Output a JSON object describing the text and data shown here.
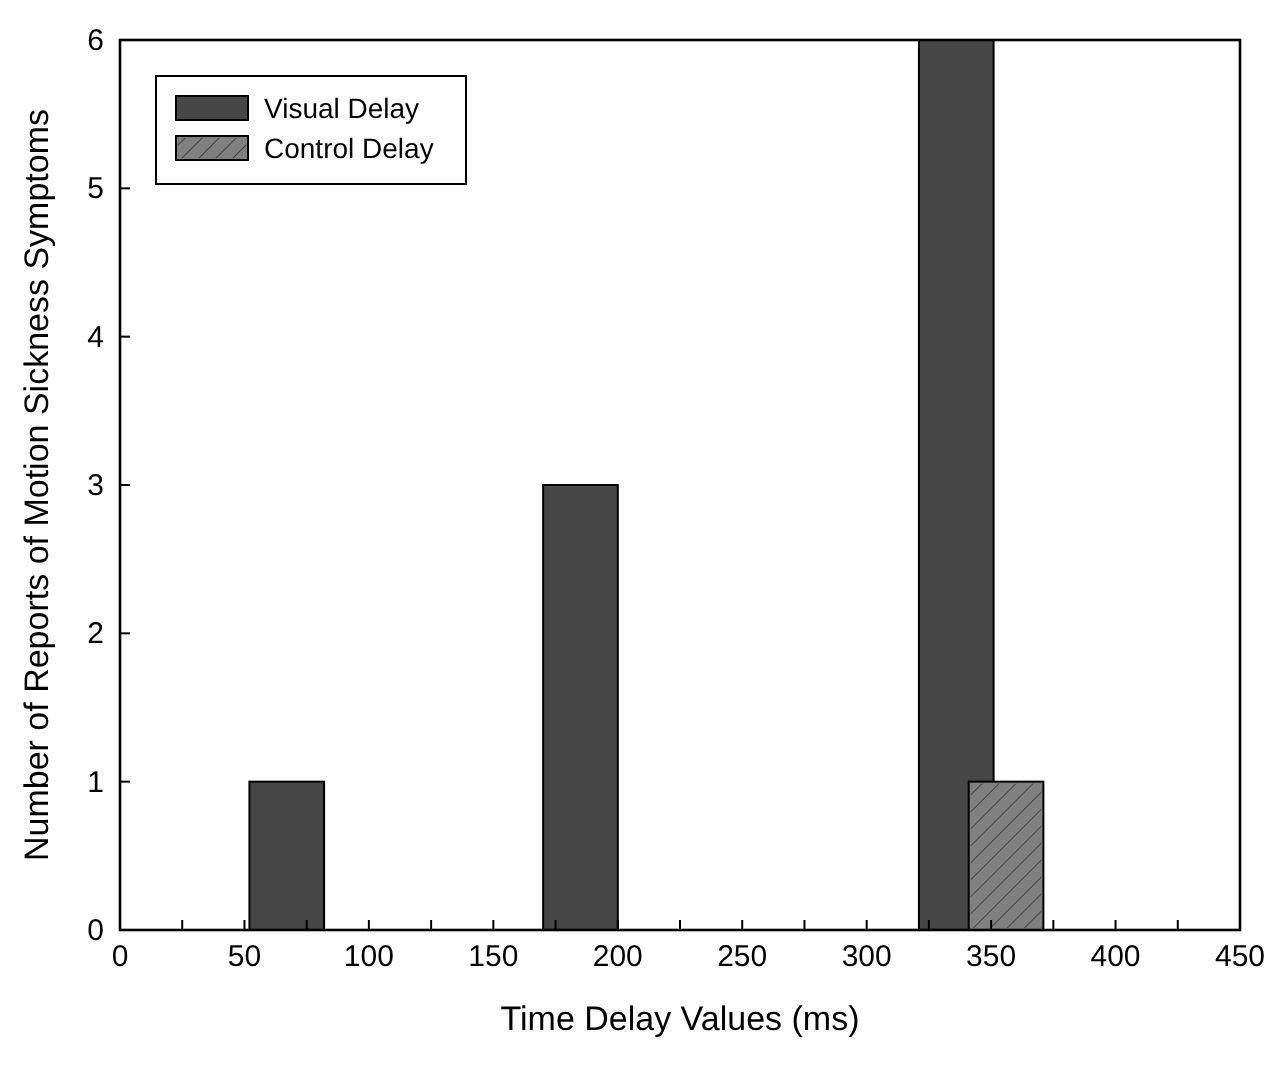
{
  "chart_data": {
    "type": "bar",
    "xlabel": "Time Delay Values (ms)",
    "ylabel": "Number of Reports of Motion Sickness Symptoms",
    "xlim": [
      0,
      450
    ],
    "ylim": [
      0,
      6
    ],
    "xticks": [
      0,
      {
        "value": 25,
        "label": null
      },
      50,
      {
        "value": 75,
        "label": null
      },
      100,
      {
        "value": 125,
        "label": null
      },
      150,
      {
        "value": 175,
        "label": null
      },
      200,
      {
        "value": 225,
        "label": null
      },
      250,
      {
        "value": 275,
        "label": null
      },
      300,
      {
        "value": 325,
        "label": null
      },
      350,
      {
        "value": 375,
        "label": null
      },
      400,
      {
        "value": 425,
        "label": null
      },
      450
    ],
    "yticks": [
      0,
      1,
      2,
      3,
      4,
      5,
      6
    ],
    "grid": false,
    "legend": "top left",
    "series": [
      {
        "name": "Visual Delay",
        "color": "#474747",
        "x": [
          67,
          185,
          336
        ],
        "values": [
          1,
          3,
          6
        ]
      },
      {
        "name": "Control Delay",
        "color": "#808080",
        "x": [
          356
        ],
        "values": [
          1
        ]
      }
    ]
  }
}
